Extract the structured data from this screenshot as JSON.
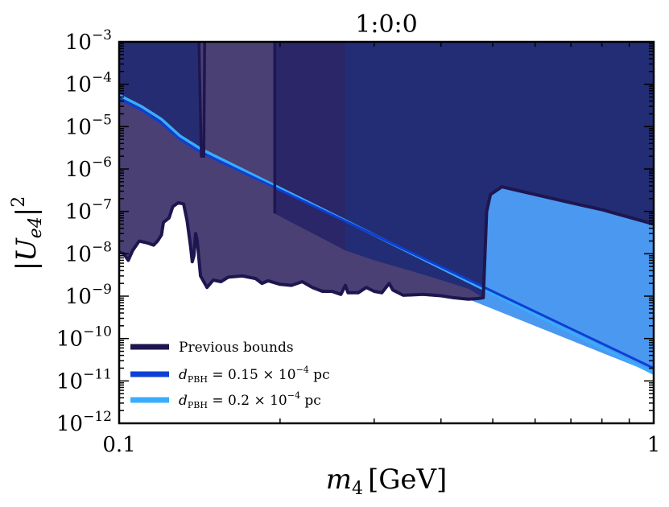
{
  "chart_data": {
    "type": "area",
    "title": "1:0:0",
    "xlabel": "m",
    "xlabel_sub": "4",
    "xlabel_unit": "[GeV]",
    "ylabel": "|U",
    "ylabel_sub": "e4",
    "ylabel_sup": "2",
    "xscale": "log",
    "yscale": "log",
    "xlim": [
      0.1,
      1
    ],
    "ylim": [
      1e-12,
      0.001
    ],
    "x_ticks": [
      {
        "value": 0.1,
        "label": "0.1"
      },
      {
        "value": 1,
        "label": "1"
      }
    ],
    "y_ticks": [
      {
        "value": 0.001,
        "base": "10",
        "exp": "−3"
      },
      {
        "value": 0.0001,
        "base": "10",
        "exp": "−4"
      },
      {
        "value": 1e-05,
        "base": "10",
        "exp": "−5"
      },
      {
        "value": 1e-06,
        "base": "10",
        "exp": "−6"
      },
      {
        "value": 1e-07,
        "base": "10",
        "exp": "−7"
      },
      {
        "value": 1e-08,
        "base": "10",
        "exp": "−8"
      },
      {
        "value": 1e-09,
        "base": "10",
        "exp": "−9"
      },
      {
        "value": 1e-10,
        "base": "10",
        "exp": "−10"
      },
      {
        "value": 1e-11,
        "base": "10",
        "exp": "−11"
      },
      {
        "value": 1e-12,
        "base": "10",
        "exp": "−12"
      }
    ],
    "legend_position": "bottom-left",
    "legend": [
      {
        "label": "Previous bounds",
        "color": "#1e1650"
      },
      {
        "prefix": "d",
        "sub": "PBH",
        "value": " = 0.15 × 10",
        "exp": "−4",
        "unit": " pc",
        "color": "#0d3fd4"
      },
      {
        "prefix": "d",
        "sub": "PBH",
        "value": " = 0.2 × 10",
        "exp": "−4",
        "unit": " pc",
        "color": "#3aacff"
      }
    ],
    "series": [
      {
        "name": "previous-bounds-total",
        "kind": "filled-region",
        "fill": "#4a4073",
        "stroke": "#1e1650",
        "boundary": [
          [
            0.1,
            1.1e-08
          ],
          [
            0.102,
            1e-08
          ],
          [
            0.104,
            7e-09
          ],
          [
            0.106,
            1.2e-08
          ],
          [
            0.109,
            2e-08
          ],
          [
            0.113,
            1.8e-08
          ],
          [
            0.116,
            1.6e-08
          ],
          [
            0.118,
            2e-08
          ],
          [
            0.12,
            2.8e-08
          ],
          [
            0.121,
            5.5e-08
          ],
          [
            0.124,
            7e-08
          ],
          [
            0.126,
            1.3e-07
          ],
          [
            0.129,
            1.6e-07
          ],
          [
            0.132,
            1.5e-07
          ],
          [
            0.134,
            6e-08
          ],
          [
            0.136,
            1.5e-08
          ],
          [
            0.137,
            6.5e-09
          ],
          [
            0.138,
            9e-09
          ],
          [
            0.139,
            3e-08
          ],
          [
            0.14,
            2e-08
          ],
          [
            0.142,
            3e-09
          ],
          [
            0.146,
            1.6e-09
          ],
          [
            0.15,
            2.4e-09
          ],
          [
            0.155,
            2.2e-09
          ],
          [
            0.16,
            2.8e-09
          ],
          [
            0.17,
            3e-09
          ],
          [
            0.18,
            2.6e-09
          ],
          [
            0.185,
            2e-09
          ],
          [
            0.19,
            2.3e-09
          ],
          [
            0.2,
            1.9e-09
          ],
          [
            0.21,
            1.8e-09
          ],
          [
            0.22,
            2.2e-09
          ],
          [
            0.23,
            1.6e-09
          ],
          [
            0.24,
            1.3e-09
          ],
          [
            0.25,
            1.3e-09
          ],
          [
            0.26,
            1.1e-09
          ],
          [
            0.265,
            1.8e-09
          ],
          [
            0.268,
            1.2e-09
          ],
          [
            0.28,
            1.2e-09
          ],
          [
            0.29,
            1.6e-09
          ],
          [
            0.3,
            1.3e-09
          ],
          [
            0.31,
            1.2e-09
          ],
          [
            0.32,
            2e-09
          ],
          [
            0.325,
            1.4e-09
          ],
          [
            0.34,
            1.05e-09
          ],
          [
            0.37,
            1.1e-09
          ],
          [
            0.4,
            1.02e-09
          ],
          [
            0.42,
            9.3e-10
          ],
          [
            0.45,
            8.5e-10
          ],
          [
            0.47,
            8.8e-10
          ],
          [
            0.48,
            9.2e-10
          ],
          [
            0.487,
            1e-07
          ],
          [
            0.495,
            2.5e-07
          ],
          [
            0.52,
            3.8e-07
          ],
          [
            0.6,
            2.5e-07
          ],
          [
            0.7,
            1.6e-07
          ],
          [
            0.8,
            1.1e-07
          ],
          [
            1.0,
            5e-08
          ]
        ]
      },
      {
        "name": "bound-dark-left",
        "kind": "filled-region",
        "fill": "#252c72",
        "region": [
          [
            0.1,
            0.001
          ],
          [
            0.142,
            0.001
          ],
          [
            0.142,
            2.5e-06
          ],
          [
            0.13,
            5e-06
          ],
          [
            0.12,
            1.2e-05
          ],
          [
            0.11,
            2.5e-05
          ],
          [
            0.1,
            4.5e-05
          ]
        ]
      },
      {
        "name": "bound-dark-middle",
        "kind": "filled-region",
        "fill": "#2a2668",
        "region": [
          [
            0.195,
            0.001
          ],
          [
            0.265,
            0.001
          ],
          [
            0.265,
            1.2e-08
          ],
          [
            0.195,
            9e-08
          ]
        ]
      },
      {
        "name": "bound-dark-right",
        "kind": "filled-region",
        "fill": "#232d75",
        "region": [
          [
            0.265,
            0.001
          ],
          [
            1.0,
            0.001
          ],
          [
            1.0,
            5e-08
          ],
          [
            0.8,
            1.1e-07
          ],
          [
            0.7,
            1.6e-07
          ],
          [
            0.6,
            2.5e-07
          ],
          [
            0.52,
            3.8e-07
          ],
          [
            0.495,
            2.5e-07
          ],
          [
            0.487,
            1e-07
          ],
          [
            0.48,
            9.2e-10
          ],
          [
            0.45,
            1.5e-09
          ],
          [
            0.4,
            2.4e-09
          ],
          [
            0.35,
            4e-09
          ],
          [
            0.3,
            7e-09
          ],
          [
            0.265,
            1.2e-08
          ]
        ]
      },
      {
        "name": "previous-bounds-upper-lines",
        "kind": "line",
        "stroke": "#1e1650",
        "segments": [
          [
            [
              0.141,
              0.001
            ],
            [
              0.1425,
              2e-06
            ],
            [
              0.144,
              2e-06
            ],
            [
              0.1445,
              0.001
            ]
          ],
          [
            [
              0.1955,
              0.001
            ],
            [
              0.1955,
              9e-08
            ]
          ]
        ]
      },
      {
        "name": "dPBH = 0.15 × 10^-4 pc",
        "kind": "line",
        "stroke": "#0d3fd4",
        "points": [
          [
            0.1,
            4.5e-05
          ],
          [
            0.11,
            2.5e-05
          ],
          [
            0.12,
            1.2e-05
          ],
          [
            0.13,
            5e-06
          ],
          [
            0.142,
            2.5e-06
          ],
          [
            1.0,
            2e-11
          ]
        ]
      },
      {
        "name": "dPBH = 0.2 × 10^-4 pc",
        "kind": "line-with-fill",
        "stroke": "#3aacff",
        "fill": "#4a98f0",
        "points": [
          [
            0.1,
            5.5e-05
          ],
          [
            0.11,
            3e-05
          ],
          [
            0.12,
            1.5e-05
          ],
          [
            0.13,
            6e-06
          ],
          [
            0.142,
            3e-06
          ],
          [
            1.0,
            1.5e-11
          ]
        ]
      }
    ]
  }
}
